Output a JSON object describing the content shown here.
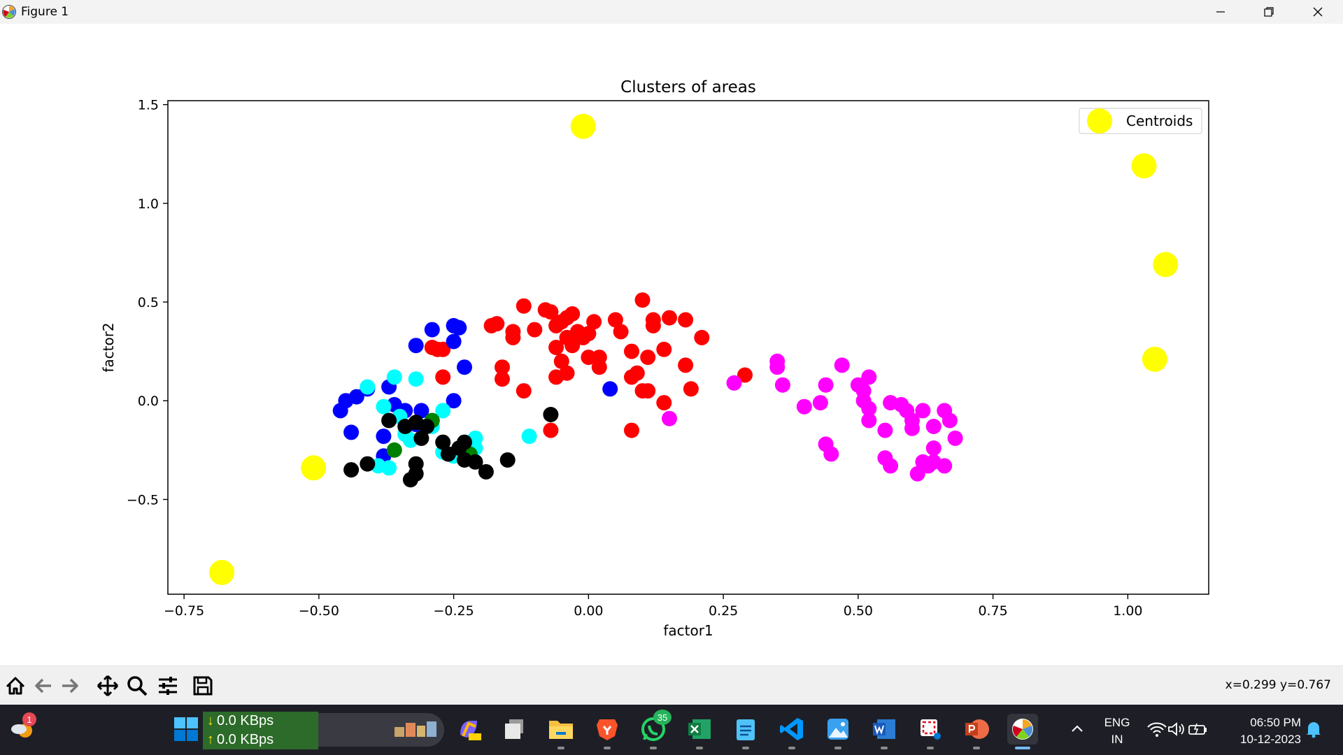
{
  "window": {
    "title": "Figure 1"
  },
  "chart_data": {
    "type": "scatter",
    "title": "Clusters of areas",
    "xlabel": "factor1",
    "ylabel": "factor2",
    "xlim": [
      -0.78,
      1.15
    ],
    "ylim": [
      -0.98,
      1.52
    ],
    "xticks": [
      -0.75,
      -0.5,
      -0.25,
      0.0,
      0.25,
      0.5,
      0.75,
      1.0
    ],
    "xtick_labels": [
      "−0.75",
      "−0.50",
      "−0.25",
      "0.00",
      "0.25",
      "0.50",
      "0.75",
      "1.00"
    ],
    "yticks": [
      -0.5,
      0.0,
      0.5,
      1.0,
      1.5
    ],
    "ytick_labels": [
      "−0.5",
      "0.0",
      "0.5",
      "1.0",
      "1.5"
    ],
    "grid": false,
    "legend_position": "top-right",
    "legend_entries": [
      "Centroids"
    ],
    "series": [
      {
        "color": "#ff0000",
        "points": [
          [
            -0.18,
            0.38
          ],
          [
            -0.17,
            0.39
          ],
          [
            -0.14,
            0.35
          ],
          [
            -0.14,
            0.32
          ],
          [
            -0.12,
            0.48
          ],
          [
            -0.1,
            0.36
          ],
          [
            -0.08,
            0.46
          ],
          [
            -0.07,
            0.45
          ],
          [
            -0.06,
            0.38
          ],
          [
            -0.05,
            0.4
          ],
          [
            -0.04,
            0.42
          ],
          [
            -0.03,
            0.44
          ],
          [
            -0.02,
            0.35
          ],
          [
            -0.04,
            0.32
          ],
          [
            -0.01,
            0.32
          ],
          [
            0.0,
            0.34
          ],
          [
            -0.06,
            0.27
          ],
          [
            -0.03,
            0.28
          ],
          [
            0.01,
            0.4
          ],
          [
            0.05,
            0.41
          ],
          [
            0.06,
            0.35
          ],
          [
            0.1,
            0.51
          ],
          [
            0.12,
            0.41
          ],
          [
            0.12,
            0.38
          ],
          [
            0.15,
            0.42
          ],
          [
            0.18,
            0.41
          ],
          [
            0.21,
            0.32
          ],
          [
            0.0,
            0.22
          ],
          [
            0.02,
            0.22
          ],
          [
            0.02,
            0.17
          ],
          [
            -0.05,
            0.2
          ],
          [
            -0.06,
            0.12
          ],
          [
            -0.04,
            0.14
          ],
          [
            -0.16,
            0.17
          ],
          [
            -0.16,
            0.11
          ],
          [
            -0.12,
            0.05
          ],
          [
            0.08,
            0.25
          ],
          [
            0.11,
            0.22
          ],
          [
            0.14,
            0.26
          ],
          [
            0.08,
            0.12
          ],
          [
            0.09,
            0.14
          ],
          [
            0.1,
            0.05
          ],
          [
            0.11,
            0.05
          ],
          [
            0.14,
            -0.01
          ],
          [
            0.18,
            0.18
          ],
          [
            0.19,
            0.06
          ],
          [
            0.08,
            -0.15
          ],
          [
            -0.07,
            -0.15
          ],
          [
            -0.27,
            0.12
          ],
          [
            -0.28,
            0.26
          ],
          [
            -0.29,
            0.27
          ],
          [
            -0.27,
            0.26
          ],
          [
            0.29,
            0.13
          ]
        ]
      },
      {
        "color": "#0000ff",
        "points": [
          [
            -0.29,
            0.36
          ],
          [
            -0.25,
            0.38
          ],
          [
            -0.24,
            0.37
          ],
          [
            -0.25,
            0.3
          ],
          [
            -0.32,
            0.28
          ],
          [
            -0.23,
            0.17
          ],
          [
            -0.37,
            0.07
          ],
          [
            -0.41,
            0.06
          ],
          [
            -0.43,
            0.02
          ],
          [
            -0.45,
            0.0
          ],
          [
            -0.46,
            -0.05
          ],
          [
            -0.44,
            -0.16
          ],
          [
            -0.38,
            -0.18
          ],
          [
            -0.36,
            -0.02
          ],
          [
            -0.34,
            -0.05
          ],
          [
            -0.31,
            -0.05
          ],
          [
            -0.25,
            0.0
          ],
          [
            -0.38,
            -0.28
          ],
          [
            -0.32,
            -0.12
          ],
          [
            0.04,
            0.06
          ]
        ]
      },
      {
        "color": "#00ffff",
        "points": [
          [
            -0.41,
            0.07
          ],
          [
            -0.36,
            0.12
          ],
          [
            -0.32,
            0.11
          ],
          [
            -0.38,
            -0.03
          ],
          [
            -0.35,
            -0.08
          ],
          [
            -0.34,
            -0.17
          ],
          [
            -0.33,
            -0.2
          ],
          [
            -0.27,
            -0.05
          ],
          [
            -0.29,
            -0.13
          ],
          [
            -0.27,
            -0.26
          ],
          [
            -0.25,
            -0.28
          ],
          [
            -0.21,
            -0.24
          ],
          [
            -0.21,
            -0.19
          ],
          [
            -0.11,
            -0.18
          ],
          [
            -0.39,
            -0.33
          ],
          [
            -0.37,
            -0.34
          ]
        ]
      },
      {
        "color": "#008000",
        "points": [
          [
            -0.36,
            -0.25
          ],
          [
            -0.29,
            -0.1
          ],
          [
            -0.22,
            -0.27
          ]
        ]
      },
      {
        "color": "#000000",
        "points": [
          [
            -0.37,
            -0.1
          ],
          [
            -0.34,
            -0.13
          ],
          [
            -0.32,
            -0.11
          ],
          [
            -0.3,
            -0.13
          ],
          [
            -0.31,
            -0.19
          ],
          [
            -0.27,
            -0.21
          ],
          [
            -0.26,
            -0.27
          ],
          [
            -0.24,
            -0.24
          ],
          [
            -0.23,
            -0.21
          ],
          [
            -0.23,
            -0.3
          ],
          [
            -0.21,
            -0.31
          ],
          [
            -0.19,
            -0.36
          ],
          [
            -0.15,
            -0.3
          ],
          [
            -0.07,
            -0.07
          ],
          [
            -0.32,
            -0.32
          ],
          [
            -0.32,
            -0.37
          ],
          [
            -0.33,
            -0.4
          ],
          [
            -0.41,
            -0.32
          ],
          [
            -0.44,
            -0.35
          ]
        ]
      },
      {
        "color": "#ff00ff",
        "points": [
          [
            0.35,
            0.2
          ],
          [
            0.35,
            0.17
          ],
          [
            0.36,
            0.08
          ],
          [
            0.4,
            -0.03
          ],
          [
            0.43,
            -0.01
          ],
          [
            0.44,
            0.08
          ],
          [
            0.47,
            0.18
          ],
          [
            0.5,
            0.08
          ],
          [
            0.51,
            0.05
          ],
          [
            0.52,
            0.12
          ],
          [
            0.51,
            0.0
          ],
          [
            0.52,
            -0.04
          ],
          [
            0.52,
            -0.1
          ],
          [
            0.55,
            -0.15
          ],
          [
            0.56,
            -0.01
          ],
          [
            0.58,
            -0.02
          ],
          [
            0.59,
            -0.05
          ],
          [
            0.6,
            -0.1
          ],
          [
            0.6,
            -0.14
          ],
          [
            0.62,
            -0.05
          ],
          [
            0.64,
            -0.13
          ],
          [
            0.66,
            -0.05
          ],
          [
            0.67,
            -0.1
          ],
          [
            0.68,
            -0.19
          ],
          [
            0.64,
            -0.24
          ],
          [
            0.62,
            -0.31
          ],
          [
            0.63,
            -0.33
          ],
          [
            0.61,
            -0.37
          ],
          [
            0.64,
            -0.31
          ],
          [
            0.66,
            -0.33
          ],
          [
            0.55,
            -0.29
          ],
          [
            0.56,
            -0.33
          ],
          [
            0.44,
            -0.22
          ],
          [
            0.45,
            -0.27
          ],
          [
            0.15,
            -0.09
          ],
          [
            0.27,
            0.09
          ]
        ]
      }
    ],
    "centroids": {
      "name": "Centroids",
      "color": "#ffff00",
      "points": [
        [
          -0.01,
          1.39
        ],
        [
          1.03,
          1.19
        ],
        [
          1.07,
          0.69
        ],
        [
          1.05,
          0.21
        ],
        [
          -0.51,
          -0.34
        ],
        [
          -0.68,
          -0.87
        ]
      ]
    }
  },
  "toolbar": {
    "buttons": [
      "home-icon",
      "back-arrow-icon",
      "forward-arrow-icon",
      "pan-icon",
      "zoom-icon",
      "configure-subplots-icon",
      "save-icon"
    ],
    "coordinates": "x=0.299 y=0.767"
  },
  "taskbar": {
    "weather_badge": "1",
    "net_down": "0.0 KBps",
    "net_up": "0.0 KBps",
    "whatsapp_badge": "35",
    "lang_line1": "ENG",
    "lang_line2": "IN",
    "time": "06:50 PM",
    "date": "10-12-2023",
    "accent_color": "#76b9ed"
  }
}
